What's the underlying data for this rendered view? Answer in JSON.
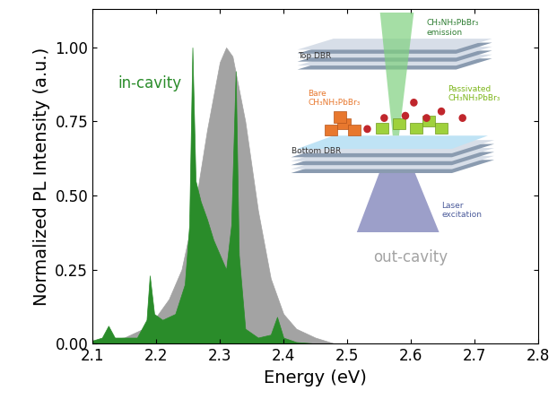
{
  "chart_data": {
    "type": "area",
    "x_label": "Energy (eV)",
    "y_label": "Normalized PL Intensity (a.u.)",
    "xlim": [
      2.1,
      2.8
    ],
    "xticks": [
      2.1,
      2.2,
      2.3,
      2.4,
      2.5,
      2.6,
      2.7,
      2.8
    ],
    "ylim": [
      0,
      1.13
    ],
    "yticks": [
      {
        "value": 0,
        "label": "0.00"
      },
      {
        "value": 0.25,
        "label": "0.25"
      },
      {
        "value": 0.5,
        "label": "0.50"
      },
      {
        "value": 0.75,
        "label": "0.75"
      },
      {
        "value": 1.0,
        "label": "1.00"
      }
    ],
    "series": [
      {
        "name": "out-cavity",
        "color": "#a3a3a3",
        "x": [
          2.1,
          2.15,
          2.18,
          2.2,
          2.22,
          2.24,
          2.26,
          2.28,
          2.3,
          2.31,
          2.32,
          2.34,
          2.36,
          2.38,
          2.4,
          2.42,
          2.45,
          2.48
        ],
        "values": [
          0.01,
          0.02,
          0.05,
          0.09,
          0.15,
          0.25,
          0.45,
          0.72,
          0.95,
          1.0,
          0.97,
          0.75,
          0.45,
          0.22,
          0.1,
          0.05,
          0.02,
          0.0
        ]
      },
      {
        "name": "in-cavity",
        "color": "#2a8c2a",
        "x": [
          2.1,
          2.115,
          2.125,
          2.135,
          2.17,
          2.185,
          2.19,
          2.197,
          2.21,
          2.23,
          2.245,
          2.252,
          2.257,
          2.262,
          2.27,
          2.28,
          2.29,
          2.3,
          2.31,
          2.318,
          2.325,
          2.33,
          2.34,
          2.36,
          2.38,
          2.39,
          2.4,
          2.42,
          2.45
        ],
        "values": [
          0.01,
          0.02,
          0.06,
          0.02,
          0.02,
          0.08,
          0.23,
          0.1,
          0.08,
          0.1,
          0.2,
          0.4,
          1.0,
          0.55,
          0.48,
          0.42,
          0.35,
          0.3,
          0.25,
          0.4,
          0.92,
          0.3,
          0.05,
          0.02,
          0.03,
          0.09,
          0.02,
          0.005,
          0.0
        ]
      }
    ],
    "annotations": [
      "CH₃NH₃PbBr₃\nemission",
      "Top DBR",
      "Bare\nCH₃NH₃PbBr₃",
      "Passivated\nCH₃NH₃PbBr₃",
      "Bottom DBR",
      "Laser\nexcitation"
    ]
  }
}
